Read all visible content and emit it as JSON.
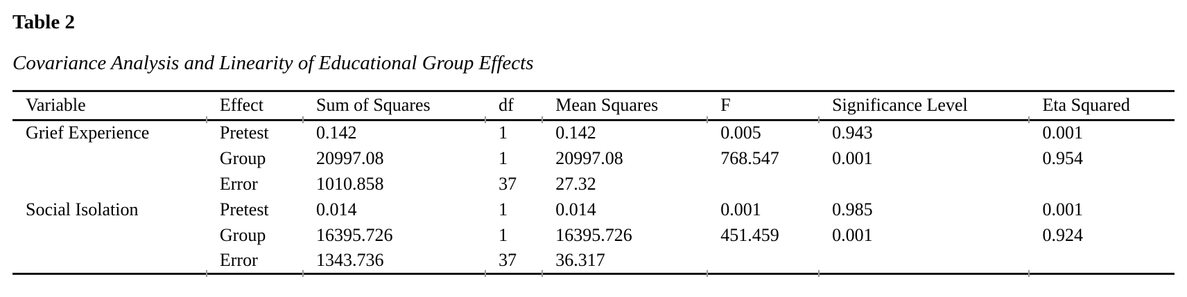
{
  "page": {
    "table_number": "Table 2",
    "caption": "Covariance Analysis and Linearity of Educational Group Effects"
  },
  "table": {
    "columns": [
      "Variable",
      "Effect",
      "Sum of Squares",
      "df",
      "Mean Squares",
      "F",
      "Significance Level",
      "Eta Squared"
    ],
    "rows": [
      [
        "Grief Experience",
        "Pretest",
        "0.142",
        "1",
        "0.142",
        "0.005",
        "0.943",
        "0.001"
      ],
      [
        "",
        "Group",
        "20997.08",
        "1",
        "20997.08",
        "768.547",
        "0.001",
        "0.954"
      ],
      [
        "",
        "Error",
        "1010.858",
        "37",
        "27.32",
        "",
        "",
        ""
      ],
      [
        "Social Isolation",
        "Pretest",
        "0.014",
        "1",
        "0.014",
        "0.001",
        "0.985",
        "0.001"
      ],
      [
        "",
        "Group",
        "16395.726",
        "1",
        "16395.726",
        "451.459",
        "0.001",
        "0.924"
      ],
      [
        "",
        "Error",
        "1343.736",
        "37",
        "36.317",
        "",
        "",
        ""
      ]
    ]
  }
}
